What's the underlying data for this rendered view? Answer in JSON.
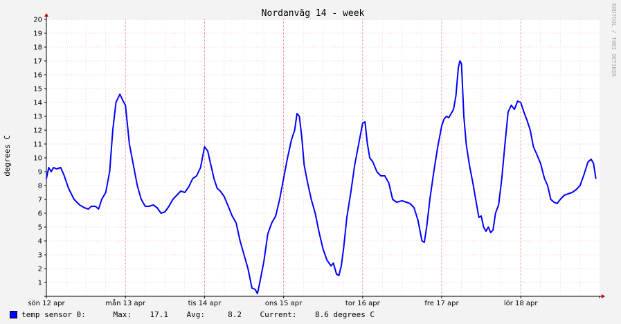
{
  "chart_data": {
    "type": "line",
    "title": "Nordanväg 14 - week",
    "ylabel": "degrees C",
    "ylim": [
      0,
      20
    ],
    "yticks": [
      "1",
      "2",
      "3",
      "4",
      "5",
      "6",
      "7",
      "8",
      "9",
      "10",
      "11",
      "12",
      "13",
      "14",
      "15",
      "16",
      "17",
      "18",
      "19",
      "20"
    ],
    "xlim_days": [
      0,
      7
    ],
    "xtick_labels": [
      "sön 12 apr",
      "mån 13 apr",
      "tis 14 apr",
      "ons 15 apr",
      "tor 16 apr",
      "fre 17 apr",
      "lör 18 apr"
    ],
    "grid": true,
    "watermark": "RRDTOOL / TOBI OETIKER",
    "series": [
      {
        "name": "temp sensor 0:",
        "color": "#0000ff",
        "points": [
          [
            0.0,
            8.5
          ],
          [
            0.03,
            9.3
          ],
          [
            0.06,
            9.0
          ],
          [
            0.09,
            9.3
          ],
          [
            0.13,
            9.2
          ],
          [
            0.18,
            9.3
          ],
          [
            0.22,
            8.8
          ],
          [
            0.28,
            7.8
          ],
          [
            0.35,
            7.0
          ],
          [
            0.42,
            6.6
          ],
          [
            0.48,
            6.4
          ],
          [
            0.53,
            6.3
          ],
          [
            0.57,
            6.5
          ],
          [
            0.62,
            6.5
          ],
          [
            0.66,
            6.3
          ],
          [
            0.7,
            7.0
          ],
          [
            0.75,
            7.5
          ],
          [
            0.8,
            9.0
          ],
          [
            0.84,
            12.0
          ],
          [
            0.88,
            14.0
          ],
          [
            0.93,
            14.6
          ],
          [
            0.97,
            14.1
          ],
          [
            1.0,
            13.8
          ],
          [
            1.05,
            11.0
          ],
          [
            1.1,
            9.5
          ],
          [
            1.15,
            8.0
          ],
          [
            1.2,
            7.0
          ],
          [
            1.25,
            6.5
          ],
          [
            1.3,
            6.5
          ],
          [
            1.35,
            6.6
          ],
          [
            1.4,
            6.4
          ],
          [
            1.45,
            6.0
          ],
          [
            1.5,
            6.1
          ],
          [
            1.55,
            6.5
          ],
          [
            1.6,
            7.0
          ],
          [
            1.65,
            7.3
          ],
          [
            1.7,
            7.6
          ],
          [
            1.75,
            7.5
          ],
          [
            1.8,
            7.9
          ],
          [
            1.85,
            8.5
          ],
          [
            1.9,
            8.7
          ],
          [
            1.95,
            9.3
          ],
          [
            2.0,
            10.8
          ],
          [
            2.04,
            10.5
          ],
          [
            2.08,
            9.5
          ],
          [
            2.12,
            8.5
          ],
          [
            2.16,
            7.8
          ],
          [
            2.2,
            7.6
          ],
          [
            2.25,
            7.2
          ],
          [
            2.3,
            6.5
          ],
          [
            2.35,
            5.8
          ],
          [
            2.4,
            5.3
          ],
          [
            2.45,
            4.0
          ],
          [
            2.5,
            3.0
          ],
          [
            2.55,
            2.0
          ],
          [
            2.6,
            0.6
          ],
          [
            2.64,
            0.5
          ],
          [
            2.67,
            0.2
          ],
          [
            2.7,
            1.0
          ],
          [
            2.75,
            2.5
          ],
          [
            2.8,
            4.5
          ],
          [
            2.85,
            5.3
          ],
          [
            2.9,
            5.8
          ],
          [
            2.95,
            7.0
          ],
          [
            3.0,
            8.5
          ],
          [
            3.05,
            10.0
          ],
          [
            3.1,
            11.3
          ],
          [
            3.14,
            12.0
          ],
          [
            3.17,
            13.2
          ],
          [
            3.2,
            13.0
          ],
          [
            3.23,
            11.5
          ],
          [
            3.26,
            9.5
          ],
          [
            3.3,
            8.3
          ],
          [
            3.35,
            7.0
          ],
          [
            3.4,
            6.0
          ],
          [
            3.45,
            4.6
          ],
          [
            3.5,
            3.4
          ],
          [
            3.55,
            2.6
          ],
          [
            3.6,
            2.2
          ],
          [
            3.63,
            2.4
          ],
          [
            3.67,
            1.6
          ],
          [
            3.7,
            1.5
          ],
          [
            3.73,
            2.2
          ],
          [
            3.76,
            3.5
          ],
          [
            3.8,
            5.7
          ],
          [
            3.85,
            7.5
          ],
          [
            3.9,
            9.5
          ],
          [
            3.95,
            11.0
          ],
          [
            4.0,
            12.5
          ],
          [
            4.03,
            12.6
          ],
          [
            4.06,
            11.0
          ],
          [
            4.09,
            10.0
          ],
          [
            4.13,
            9.7
          ],
          [
            4.18,
            9.0
          ],
          [
            4.23,
            8.7
          ],
          [
            4.28,
            8.7
          ],
          [
            4.33,
            8.2
          ],
          [
            4.38,
            7.0
          ],
          [
            4.43,
            6.8
          ],
          [
            4.5,
            6.9
          ],
          [
            4.55,
            6.8
          ],
          [
            4.6,
            6.7
          ],
          [
            4.65,
            6.4
          ],
          [
            4.7,
            5.5
          ],
          [
            4.75,
            4.0
          ],
          [
            4.78,
            3.9
          ],
          [
            4.81,
            5.0
          ],
          [
            4.85,
            7.0
          ],
          [
            4.9,
            9.0
          ],
          [
            4.95,
            10.8
          ],
          [
            5.0,
            12.3
          ],
          [
            5.03,
            12.8
          ],
          [
            5.06,
            13.0
          ],
          [
            5.09,
            12.9
          ],
          [
            5.12,
            13.2
          ],
          [
            5.15,
            13.5
          ],
          [
            5.18,
            14.5
          ],
          [
            5.21,
            16.5
          ],
          [
            5.23,
            17.0
          ],
          [
            5.25,
            16.8
          ],
          [
            5.28,
            13.0
          ],
          [
            5.31,
            11.0
          ],
          [
            5.35,
            9.5
          ],
          [
            5.4,
            8.0
          ],
          [
            5.43,
            7.0
          ],
          [
            5.47,
            5.7
          ],
          [
            5.5,
            5.8
          ],
          [
            5.53,
            5.0
          ],
          [
            5.56,
            4.7
          ],
          [
            5.59,
            5.0
          ],
          [
            5.62,
            4.6
          ],
          [
            5.65,
            4.8
          ],
          [
            5.68,
            6.0
          ],
          [
            5.72,
            6.6
          ],
          [
            5.76,
            8.5
          ],
          [
            5.8,
            11.0
          ],
          [
            5.84,
            13.3
          ],
          [
            5.88,
            13.8
          ],
          [
            5.92,
            13.5
          ],
          [
            5.96,
            14.1
          ],
          [
            6.0,
            14.0
          ],
          [
            6.04,
            13.3
          ],
          [
            6.08,
            12.7
          ],
          [
            6.12,
            12.0
          ],
          [
            6.16,
            10.8
          ],
          [
            6.2,
            10.3
          ],
          [
            6.25,
            9.6
          ],
          [
            6.3,
            8.5
          ],
          [
            6.34,
            8.0
          ],
          [
            6.38,
            7.0
          ],
          [
            6.42,
            6.8
          ],
          [
            6.46,
            6.7
          ],
          [
            6.5,
            7.0
          ],
          [
            6.55,
            7.3
          ],
          [
            6.6,
            7.4
          ],
          [
            6.65,
            7.5
          ],
          [
            6.7,
            7.7
          ],
          [
            6.75,
            8.0
          ],
          [
            6.8,
            8.8
          ],
          [
            6.85,
            9.7
          ],
          [
            6.89,
            9.9
          ],
          [
            6.92,
            9.6
          ],
          [
            6.95,
            8.5
          ]
        ]
      }
    ],
    "legend": {
      "label": "temp sensor 0:",
      "max_label": "Max:",
      "max": "17.1",
      "avg_label": "Avg:",
      "avg": "8.2",
      "current_label": "Current:",
      "current": "8.6",
      "units": "degrees C"
    }
  }
}
